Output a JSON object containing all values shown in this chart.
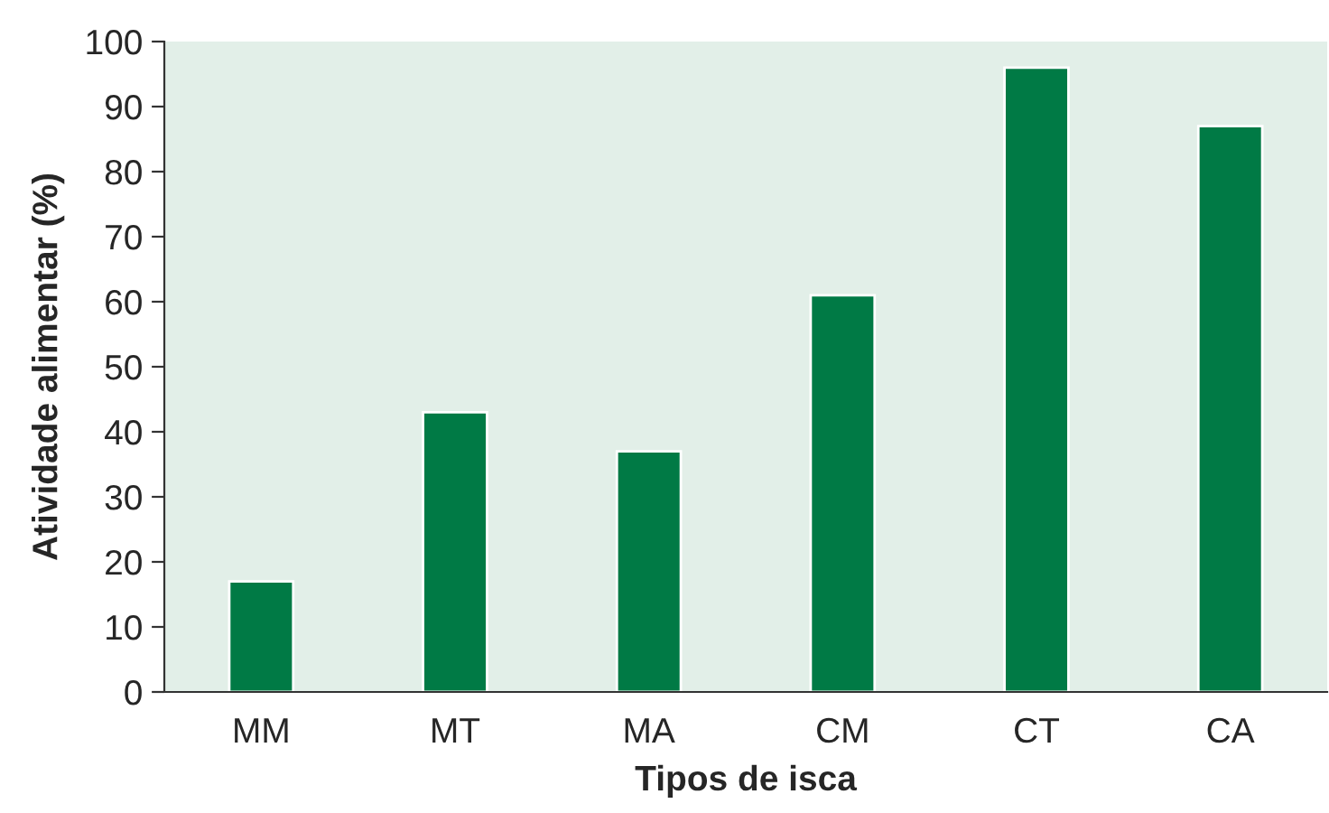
{
  "chart_data": {
    "type": "bar",
    "xlabel": "Tipos de isca",
    "ylabel": "Atividade alimentar (%)",
    "categories": [
      "MM",
      "MT",
      "MA",
      "CM",
      "CT",
      "CA"
    ],
    "values": [
      17,
      43,
      37,
      61,
      96,
      87
    ],
    "color": "#007a45",
    "ylim": [
      0,
      100
    ],
    "yticks": [
      0,
      10,
      20,
      30,
      40,
      50,
      60,
      70,
      80,
      90,
      100
    ],
    "grid": false
  }
}
